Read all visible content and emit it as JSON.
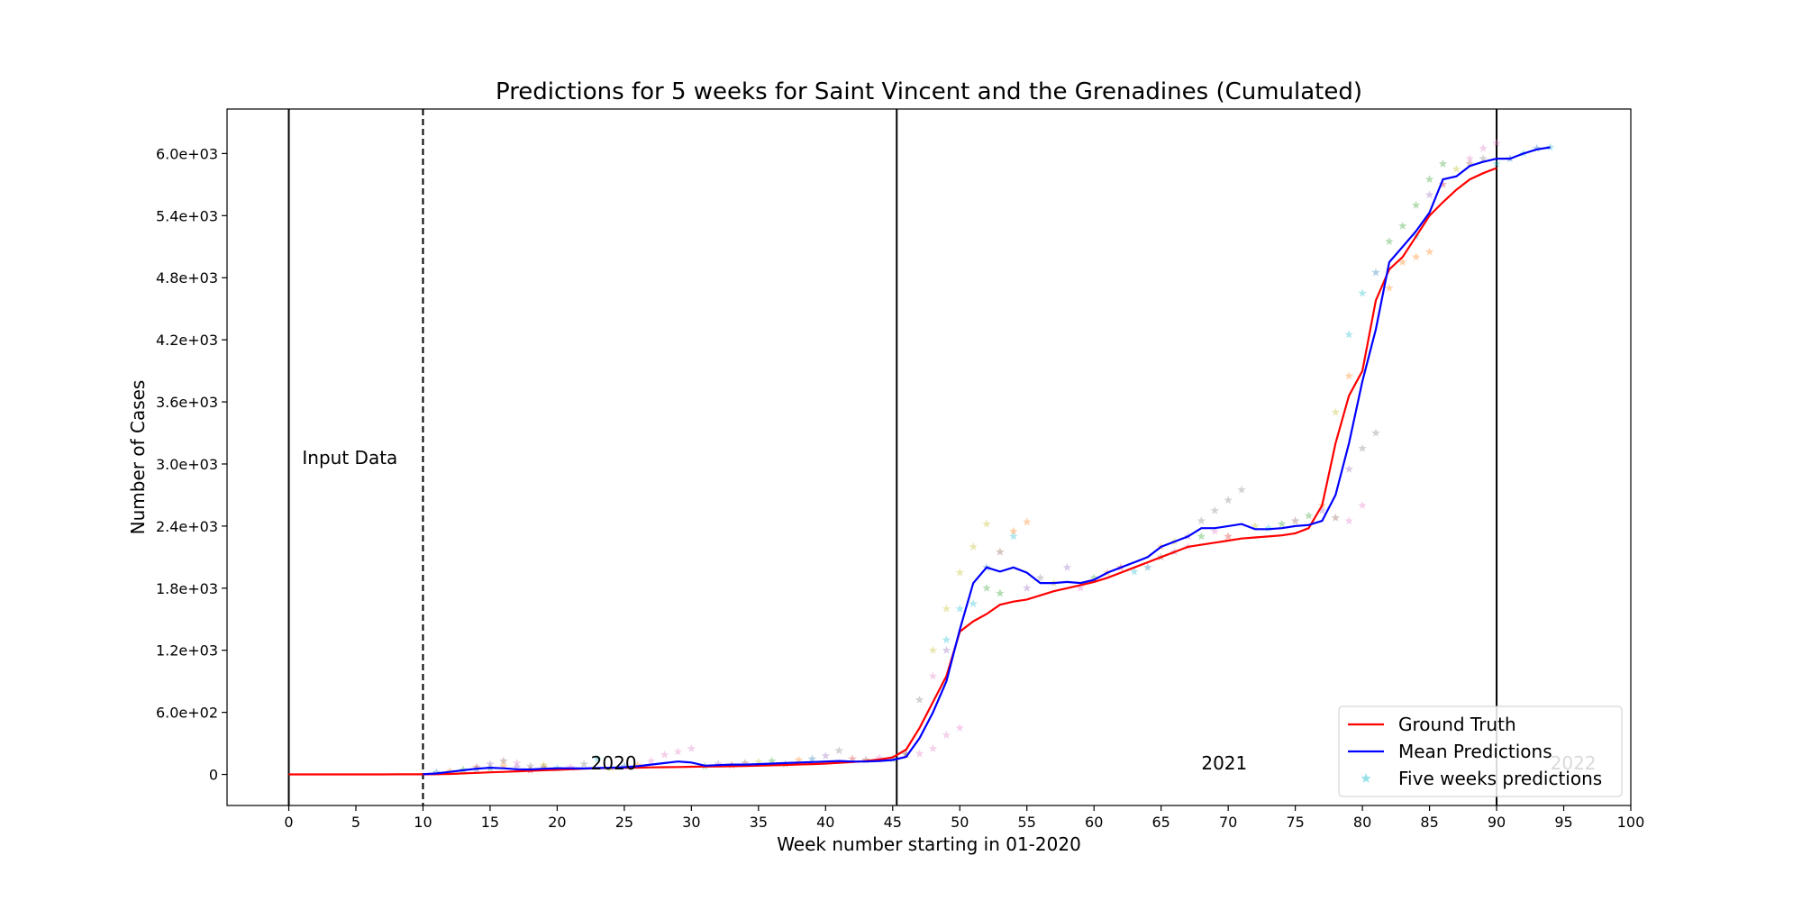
{
  "chart_data": {
    "type": "line",
    "title": "Predictions for 5 weeks for Saint Vincent and the Grenadines (Cumulated)",
    "xlabel": "Week number starting in 01-2020",
    "ylabel": "Number of Cases",
    "xlim": [
      -4.6,
      100
    ],
    "ylim": [
      -300,
      6430
    ],
    "xticks": [
      0,
      5,
      10,
      15,
      20,
      25,
      30,
      35,
      40,
      45,
      50,
      55,
      60,
      65,
      70,
      75,
      80,
      85,
      90,
      95,
      100
    ],
    "xtick_labels": [
      "0",
      "5",
      "10",
      "15",
      "20",
      "25",
      "30",
      "35",
      "40",
      "45",
      "50",
      "55",
      "60",
      "65",
      "70",
      "75",
      "80",
      "85",
      "90",
      "95",
      "100"
    ],
    "yticks": [
      0,
      600,
      1200,
      1800,
      2400,
      3000,
      3600,
      4200,
      4800,
      5400,
      6000
    ],
    "ytick_labels": [
      "0",
      "6.0e+02",
      "1.2e+03",
      "1.8e+03",
      "2.4e+03",
      "3.0e+03",
      "3.6e+03",
      "4.2e+03",
      "4.8e+03",
      "5.4e+03",
      "6.0e+03"
    ],
    "vertical_lines": [
      {
        "x": 0,
        "style": "solid"
      },
      {
        "x": 10,
        "style": "dashed"
      },
      {
        "x": 45.3,
        "style": "solid"
      },
      {
        "x": 90,
        "style": "solid"
      }
    ],
    "annotations": [
      {
        "text": "Input Data",
        "x": 1,
        "y": 3000,
        "color": "#000000"
      },
      {
        "text": "2020",
        "x": 22.5,
        "y": 50,
        "color": "#000000"
      },
      {
        "text": "2021",
        "x": 68,
        "y": 50,
        "color": "#000000"
      },
      {
        "text": "2022",
        "x": 94,
        "y": 50,
        "color": "#bbbbbb"
      }
    ],
    "series": [
      {
        "name": "Ground Truth",
        "type": "line",
        "color": "#ff0000",
        "x": [
          0,
          1,
          2,
          3,
          4,
          5,
          6,
          7,
          8,
          9,
          10,
          11,
          12,
          13,
          14,
          15,
          16,
          17,
          18,
          19,
          20,
          21,
          22,
          23,
          24,
          25,
          26,
          27,
          28,
          29,
          30,
          31,
          32,
          33,
          34,
          35,
          36,
          37,
          38,
          39,
          40,
          41,
          42,
          43,
          44,
          45,
          46,
          47,
          48,
          49,
          50,
          51,
          52,
          53,
          54,
          55,
          56,
          57,
          58,
          59,
          60,
          61,
          62,
          63,
          64,
          65,
          66,
          67,
          68,
          69,
          70,
          71,
          72,
          73,
          74,
          75,
          76,
          77,
          78,
          79,
          80,
          81,
          82,
          83,
          84,
          85,
          86,
          87,
          88,
          89,
          90
        ],
        "y": [
          0,
          0,
          0,
          0,
          0,
          0,
          0,
          0,
          1,
          1,
          1,
          2,
          5,
          10,
          15,
          20,
          25,
          30,
          35,
          40,
          45,
          50,
          55,
          60,
          62,
          64,
          66,
          68,
          70,
          72,
          74,
          76,
          78,
          80,
          82,
          85,
          88,
          92,
          96,
          100,
          105,
          112,
          120,
          130,
          145,
          165,
          240,
          450,
          700,
          950,
          1380,
          1480,
          1550,
          1640,
          1670,
          1690,
          1730,
          1770,
          1800,
          1830,
          1860,
          1900,
          1950,
          2000,
          2050,
          2100,
          2150,
          2200,
          2220,
          2240,
          2260,
          2280,
          2290,
          2300,
          2310,
          2330,
          2380,
          2600,
          3200,
          3660,
          3900,
          4580,
          4880,
          5000,
          5200,
          5400,
          5530,
          5650,
          5750,
          5810,
          5860
        ]
      },
      {
        "name": "Mean Predictions",
        "type": "line",
        "color": "#0000ff",
        "x": [
          10,
          11,
          12,
          13,
          14,
          15,
          16,
          17,
          18,
          19,
          20,
          21,
          22,
          23,
          24,
          25,
          26,
          27,
          28,
          29,
          30,
          31,
          32,
          33,
          34,
          35,
          36,
          37,
          38,
          39,
          40,
          41,
          42,
          43,
          44,
          45,
          46,
          47,
          48,
          49,
          50,
          51,
          52,
          53,
          54,
          55,
          56,
          57,
          58,
          59,
          60,
          61,
          62,
          63,
          64,
          65,
          66,
          67,
          68,
          69,
          70,
          71,
          72,
          73,
          74,
          75,
          76,
          77,
          78,
          79,
          80,
          81,
          82,
          83,
          84,
          85,
          86,
          87,
          88,
          89,
          90,
          91,
          92,
          93,
          94
        ],
        "y": [
          2,
          10,
          25,
          40,
          55,
          65,
          60,
          50,
          48,
          55,
          60,
          60,
          58,
          62,
          65,
          70,
          80,
          95,
          110,
          125,
          115,
          85,
          90,
          95,
          95,
          100,
          105,
          110,
          115,
          120,
          125,
          130,
          125,
          125,
          130,
          140,
          170,
          350,
          600,
          900,
          1400,
          1850,
          2000,
          1960,
          2000,
          1950,
          1850,
          1850,
          1860,
          1850,
          1880,
          1950,
          2000,
          2050,
          2100,
          2200,
          2250,
          2300,
          2380,
          2380,
          2400,
          2420,
          2370,
          2370,
          2380,
          2400,
          2410,
          2450,
          2700,
          3200,
          3800,
          4300,
          4950,
          5100,
          5250,
          5430,
          5750,
          5780,
          5880,
          5920,
          5950,
          5950,
          6000,
          6040,
          6060
        ]
      },
      {
        "name": "Five weeks predictions",
        "type": "scatter",
        "marker": "star",
        "color": "#17becf",
        "points": [
          [
            11,
            20,
            "#1f77b4"
          ],
          [
            12,
            30,
            "#ff7f0e"
          ],
          [
            13,
            45,
            "#2ca02c"
          ],
          [
            14,
            70,
            "#d62728"
          ],
          [
            15,
            100,
            "#9467bd"
          ],
          [
            16,
            130,
            "#8c564b"
          ],
          [
            17,
            110,
            "#e377c2"
          ],
          [
            18,
            80,
            "#7f7f7f"
          ],
          [
            19,
            90,
            "#bcbd22"
          ],
          [
            20,
            60,
            "#17becf"
          ],
          [
            14,
            50,
            "#1f77b4"
          ],
          [
            15,
            60,
            "#2ca02c"
          ],
          [
            16,
            80,
            "#ff7f0e"
          ],
          [
            17,
            70,
            "#9467bd"
          ],
          [
            18,
            40,
            "#d62728"
          ],
          [
            19,
            70,
            "#8c564b"
          ],
          [
            21,
            70,
            "#e377c2"
          ],
          [
            22,
            100,
            "#7f7f7f"
          ],
          [
            23,
            150,
            "#17becf"
          ],
          [
            24,
            60,
            "#bcbd22"
          ],
          [
            25,
            80,
            "#1f77b4"
          ],
          [
            26,
            90,
            "#ff7f0e"
          ],
          [
            27,
            130,
            "#e377c2"
          ],
          [
            28,
            190,
            "#e377c2"
          ],
          [
            29,
            220,
            "#e377c2"
          ],
          [
            30,
            250,
            "#e377c2"
          ],
          [
            31,
            80,
            "#2ca02c"
          ],
          [
            32,
            100,
            "#9467bd"
          ],
          [
            33,
            90,
            "#d62728"
          ],
          [
            34,
            110,
            "#8c564b"
          ],
          [
            35,
            120,
            "#bcbd22"
          ],
          [
            36,
            130,
            "#2ca02c"
          ],
          [
            37,
            100,
            "#7f7f7f"
          ],
          [
            38,
            140,
            "#ff7f0e"
          ],
          [
            39,
            150,
            "#1f77b4"
          ],
          [
            40,
            180,
            "#9467bd"
          ],
          [
            41,
            230,
            "#7f7f7f"
          ],
          [
            42,
            150,
            "#d62728"
          ],
          [
            43,
            140,
            "#8c564b"
          ],
          [
            44,
            160,
            "#e377c2"
          ],
          [
            45,
            150,
            "#2ca02c"
          ],
          [
            46,
            200,
            "#7f7f7f"
          ],
          [
            47,
            720,
            "#7f7f7f"
          ],
          [
            48,
            1200,
            "#bcbd22"
          ],
          [
            49,
            1600,
            "#bcbd22"
          ],
          [
            50,
            1950,
            "#bcbd22"
          ],
          [
            51,
            2200,
            "#bcbd22"
          ],
          [
            52,
            2420,
            "#bcbd22"
          ],
          [
            46,
            190,
            "#8c564b"
          ],
          [
            47,
            200,
            "#e377c2"
          ],
          [
            48,
            250,
            "#e377c2"
          ],
          [
            49,
            380,
            "#e377c2"
          ],
          [
            50,
            450,
            "#e377c2"
          ],
          [
            48,
            950,
            "#e377c2"
          ],
          [
            49,
            1200,
            "#9467bd"
          ],
          [
            49,
            1300,
            "#17becf"
          ],
          [
            50,
            1600,
            "#17becf"
          ],
          [
            51,
            1650,
            "#17becf"
          ],
          [
            52,
            1800,
            "#2ca02c"
          ],
          [
            53,
            1750,
            "#2ca02c"
          ],
          [
            53,
            2150,
            "#8c564b"
          ],
          [
            54,
            2300,
            "#17becf"
          ],
          [
            54,
            2350,
            "#ff7f0e"
          ],
          [
            55,
            2440,
            "#ff7f0e"
          ],
          [
            52,
            2000,
            "#1f77b4"
          ],
          [
            55,
            1800,
            "#9467bd"
          ],
          [
            56,
            1900,
            "#7f7f7f"
          ],
          [
            57,
            1850,
            "#bcbd22"
          ],
          [
            58,
            2000,
            "#9467bd"
          ],
          [
            59,
            1800,
            "#e377c2"
          ],
          [
            60,
            1900,
            "#2ca02c"
          ],
          [
            61,
            1950,
            "#ff7f0e"
          ],
          [
            62,
            2000,
            "#d62728"
          ],
          [
            63,
            1960,
            "#17becf"
          ],
          [
            64,
            2000,
            "#1f77b4"
          ],
          [
            65,
            2100,
            "#8c564b"
          ],
          [
            66,
            2150,
            "#9467bd"
          ],
          [
            67,
            2200,
            "#e377c2"
          ],
          [
            65,
            2200,
            "#ff7f0e"
          ],
          [
            66,
            2250,
            "#bcbd22"
          ],
          [
            67,
            2300,
            "#9467bd"
          ],
          [
            68,
            2450,
            "#7f7f7f"
          ],
          [
            69,
            2550,
            "#7f7f7f"
          ],
          [
            70,
            2650,
            "#7f7f7f"
          ],
          [
            71,
            2750,
            "#7f7f7f"
          ],
          [
            68,
            2300,
            "#2ca02c"
          ],
          [
            69,
            2350,
            "#e377c2"
          ],
          [
            70,
            2300,
            "#d62728"
          ],
          [
            72,
            2400,
            "#bcbd22"
          ],
          [
            73,
            2380,
            "#17becf"
          ],
          [
            74,
            2420,
            "#2ca02c"
          ],
          [
            75,
            2450,
            "#8c564b"
          ],
          [
            76,
            2500,
            "#2ca02c"
          ],
          [
            77,
            2600,
            "#ff7f0e"
          ],
          [
            78,
            2480,
            "#8c564b"
          ],
          [
            79,
            2450,
            "#e377c2"
          ],
          [
            80,
            2600,
            "#e377c2"
          ],
          [
            77,
            2550,
            "#9467bd"
          ],
          [
            78,
            3500,
            "#bcbd22"
          ],
          [
            79,
            3850,
            "#ff7f0e"
          ],
          [
            79,
            2950,
            "#9467bd"
          ],
          [
            80,
            3150,
            "#7f7f7f"
          ],
          [
            81,
            3300,
            "#7f7f7f"
          ],
          [
            79,
            4250,
            "#17becf"
          ],
          [
            80,
            4650,
            "#17becf"
          ],
          [
            81,
            4850,
            "#1f77b4"
          ],
          [
            82,
            5150,
            "#2ca02c"
          ],
          [
            83,
            5300,
            "#2ca02c"
          ],
          [
            84,
            5500,
            "#2ca02c"
          ],
          [
            85,
            5750,
            "#2ca02c"
          ],
          [
            86,
            5900,
            "#2ca02c"
          ],
          [
            82,
            4700,
            "#ff7f0e"
          ],
          [
            83,
            4950,
            "#ff7f0e"
          ],
          [
            84,
            5000,
            "#ff7f0e"
          ],
          [
            85,
            5050,
            "#ff7f0e"
          ],
          [
            84,
            5200,
            "#17becf"
          ],
          [
            85,
            5600,
            "#9467bd"
          ],
          [
            86,
            5700,
            "#d62728"
          ],
          [
            87,
            5850,
            "#bcbd22"
          ],
          [
            88,
            5950,
            "#e377c2"
          ],
          [
            89,
            6050,
            "#e377c2"
          ],
          [
            90,
            6100,
            "#e377c2"
          ],
          [
            88,
            5900,
            "#8c564b"
          ],
          [
            89,
            5950,
            "#7f7f7f"
          ],
          [
            90,
            5900,
            "#17becf"
          ],
          [
            91,
            5950,
            "#1f77b4"
          ],
          [
            92,
            6000,
            "#17becf"
          ],
          [
            93,
            6050,
            "#1f77b4"
          ],
          [
            94,
            6060,
            "#17becf"
          ]
        ]
      }
    ],
    "legend": {
      "placement": "lower right",
      "entries": [
        "Ground Truth",
        "Mean Predictions",
        "Five weeks predictions"
      ]
    }
  }
}
